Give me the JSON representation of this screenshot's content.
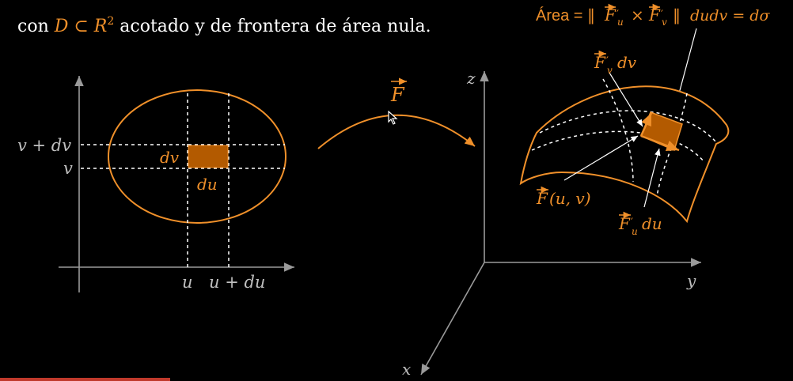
{
  "header": {
    "prefix": "con ",
    "domain_expr": "D ⊂ R",
    "exponent": "2",
    "suffix": " acotado y de frontera de área nula."
  },
  "area_formula": {
    "label": "Área =",
    "norm_open": "‖",
    "fu": "F",
    "fu_sub": "u",
    "times": "×",
    "fv": "F",
    "fv_sub": "v",
    "norm_close": "‖",
    "rest": "dudv = dσ"
  },
  "left_plot": {
    "v_plus_dv": "v + dv",
    "v": "v",
    "dv": "dv",
    "du": "du",
    "u": "u",
    "u_plus_du": "u + du"
  },
  "mapping": {
    "F": "F"
  },
  "right_plot": {
    "z": "z",
    "y": "y",
    "x": "x",
    "fv_dv": "F",
    "fv_dv_sub": "v",
    "fv_dv_tail": "dv",
    "fuv": "F",
    "fuv_tail": "(u, v)",
    "fu_du": "F",
    "fu_du_sub": "u",
    "fu_du_tail": "du"
  },
  "colors": {
    "accent": "#f0902a",
    "patch_fill": "#b35a00",
    "axis": "#9a9a9a",
    "background": "#000000"
  }
}
